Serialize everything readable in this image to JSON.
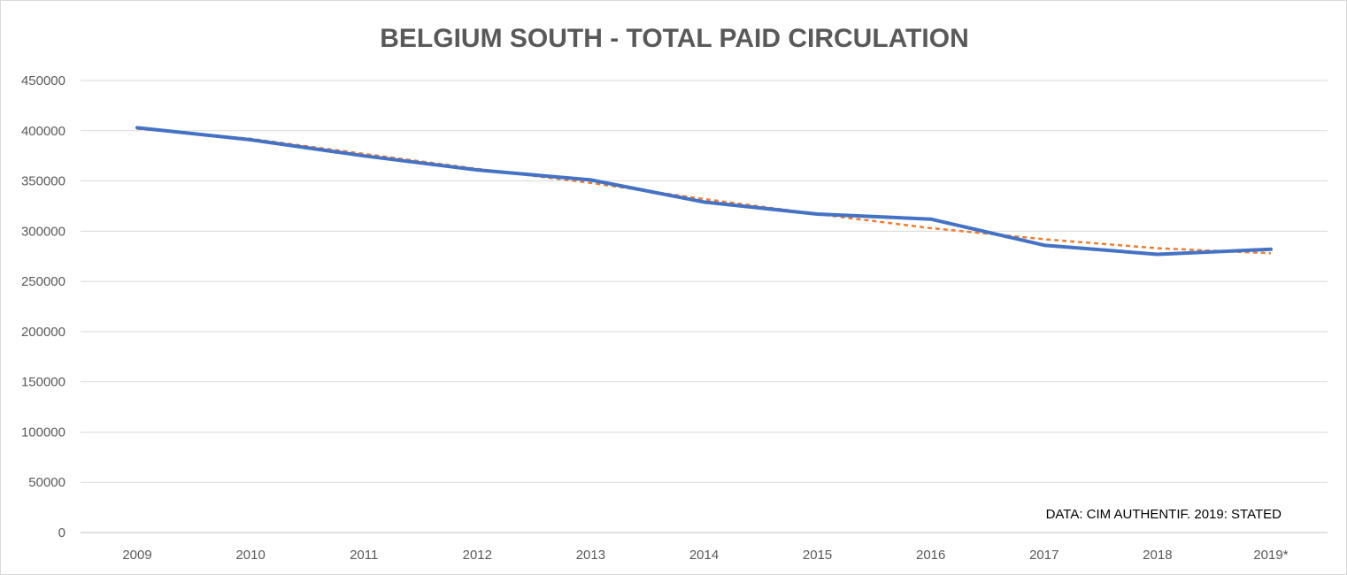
{
  "chart_data": {
    "type": "line",
    "title": "BELGIUM SOUTH - TOTAL PAID CIRCULATION",
    "xlabel": "",
    "ylabel": "",
    "categories": [
      "2009",
      "2010",
      "2011",
      "2012",
      "2013",
      "2014",
      "2015",
      "2016",
      "2017",
      "2018",
      "2019*"
    ],
    "series": [
      {
        "style": "solid",
        "color": "#4472c4",
        "values": [
          403000,
          391000,
          375000,
          361000,
          351000,
          329000,
          317000,
          312000,
          286000,
          277000,
          282000
        ]
      },
      {
        "style": "dashed",
        "color": "#ed7d31",
        "values": [
          402000,
          392000,
          377000,
          362000,
          348000,
          332000,
          317000,
          303000,
          292000,
          283000,
          278000
        ]
      }
    ],
    "ylim": [
      0,
      450000
    ],
    "yticks": [
      "0",
      "50000",
      "100000",
      "150000",
      "200000",
      "250000",
      "300000",
      "350000",
      "400000",
      "450000"
    ],
    "grid": "horizontal",
    "legend": "none",
    "annotation": "DATA: CIM AUTHENTIF. 2019: STATED"
  }
}
